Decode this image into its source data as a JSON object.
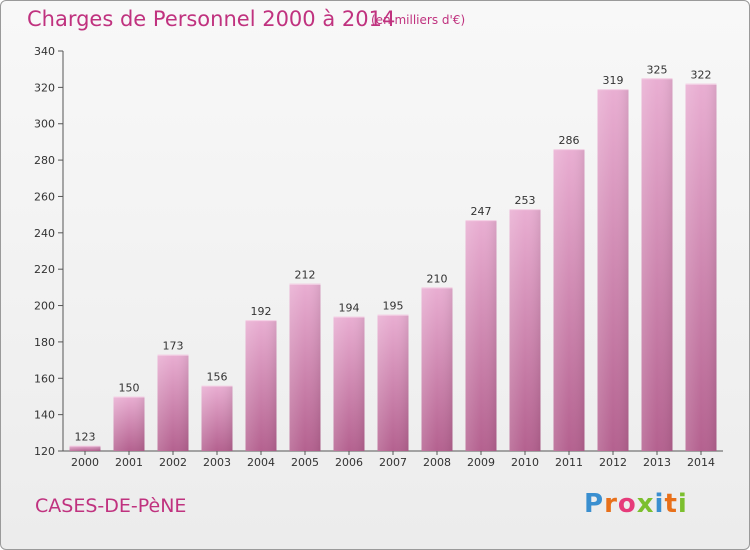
{
  "title": "Charges de Personnel 2000 à 2014",
  "subtitle": "(en milliers d'€)",
  "commune": "CASES-DE-PèNE",
  "brand": {
    "text": "Proxiti",
    "colors": [
      "#3a8fd0",
      "#e8701a",
      "#e63b7a",
      "#7cbf2e",
      "#3a8fd0",
      "#e8701a",
      "#7cbf2e"
    ]
  },
  "colors": {
    "accent": "#c0327f",
    "bar_top": "#e7a9cf",
    "bar_bottom": "#b5608f",
    "axis": "#555555"
  },
  "chart_data": {
    "type": "bar",
    "categories": [
      "2000",
      "2001",
      "2002",
      "2003",
      "2004",
      "2005",
      "2006",
      "2007",
      "2008",
      "2009",
      "2010",
      "2011",
      "2012",
      "2013",
      "2014"
    ],
    "values": [
      123,
      150,
      173,
      156,
      192,
      212,
      194,
      195,
      210,
      247,
      253,
      286,
      319,
      325,
      322
    ],
    "ylim": [
      120,
      340
    ],
    "yticks": [
      120,
      140,
      160,
      180,
      200,
      220,
      240,
      260,
      280,
      300,
      320,
      340
    ],
    "grid": false,
    "legend": "none"
  }
}
